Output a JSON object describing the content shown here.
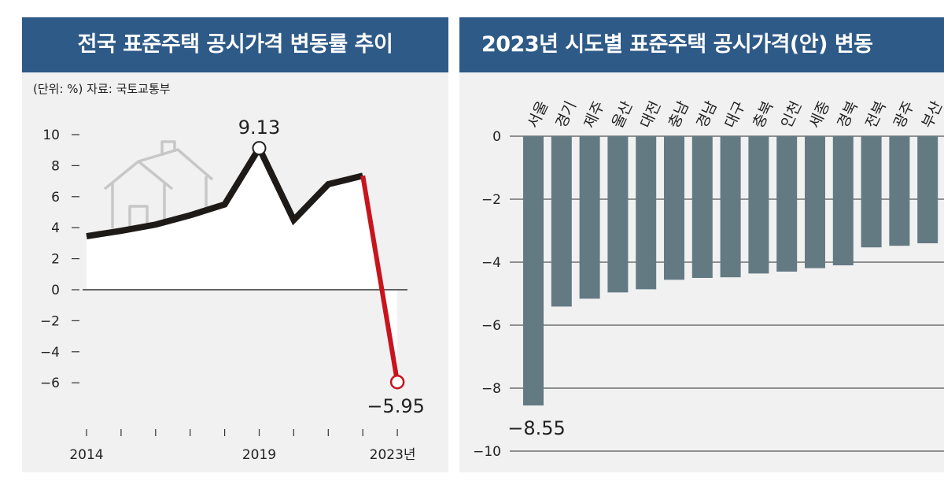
{
  "left_panel": {
    "title": "전국 표준주택 공시가격 변동률 추이",
    "unit_note": "(단위: %) 자료: 국토교통부",
    "house_icon": "house-icon",
    "colors": {
      "header_bg": "#2e5a87",
      "panel_bg": "#f1f1f2",
      "line": "#1e1a17",
      "line_drop": "#c8141d",
      "area_fill": "#ffffff"
    }
  },
  "right_panel": {
    "title": "2023년 시도별 표준주택 공시가격(안) 변동",
    "colors": {
      "header_bg": "#2e5a87",
      "bar": "#647a83"
    }
  },
  "chart_data": [
    {
      "type": "line",
      "title": "전국 표준주택 공시가격 변동률 추이",
      "x": [
        2014,
        2015,
        2016,
        2017,
        2018,
        2019,
        2020,
        2021,
        2022,
        2023
      ],
      "y": [
        3.45,
        3.8,
        4.2,
        4.8,
        5.5,
        9.13,
        4.5,
        6.8,
        7.35,
        -5.95
      ],
      "x_tick_labels": [
        "2014",
        "2019",
        "2023년"
      ],
      "y_ticks": [
        10,
        8,
        6,
        4,
        2,
        0,
        -2,
        -4,
        -6
      ],
      "y_tick_labels": [
        "10",
        "8",
        "6",
        "4",
        "2",
        "0",
        "−2",
        "−4",
        "−6"
      ],
      "ylim": [
        -6.8,
        10.8
      ],
      "annotations": [
        {
          "x": 2019,
          "label": "9.13"
        },
        {
          "x": 2023,
          "label": "−5.95"
        }
      ],
      "highlight_last_segment": true,
      "grid": false
    },
    {
      "type": "bar",
      "title": "2023년 시도별 표준주택 공시가격(안) 변동",
      "categories": [
        "서울",
        "경기",
        "제주",
        "울산",
        "대전",
        "충남",
        "경남",
        "대구",
        "충북",
        "인천",
        "세종",
        "경북",
        "전북",
        "광주",
        "부산"
      ],
      "values": [
        -8.55,
        -5.41,
        -5.16,
        -4.96,
        -4.86,
        -4.56,
        -4.5,
        -4.48,
        -4.36,
        -4.3,
        -4.19,
        -4.1,
        -3.53,
        -3.48,
        -3.4
      ],
      "y_ticks": [
        0,
        -2,
        -4,
        -6,
        -8,
        -10
      ],
      "y_tick_labels": [
        "0",
        "−2",
        "−4",
        "−6",
        "−8",
        "−10"
      ],
      "ylim": [
        -10,
        0
      ],
      "annotations": [
        {
          "category": "서울",
          "label": "−8.55"
        }
      ],
      "grid": true
    }
  ]
}
